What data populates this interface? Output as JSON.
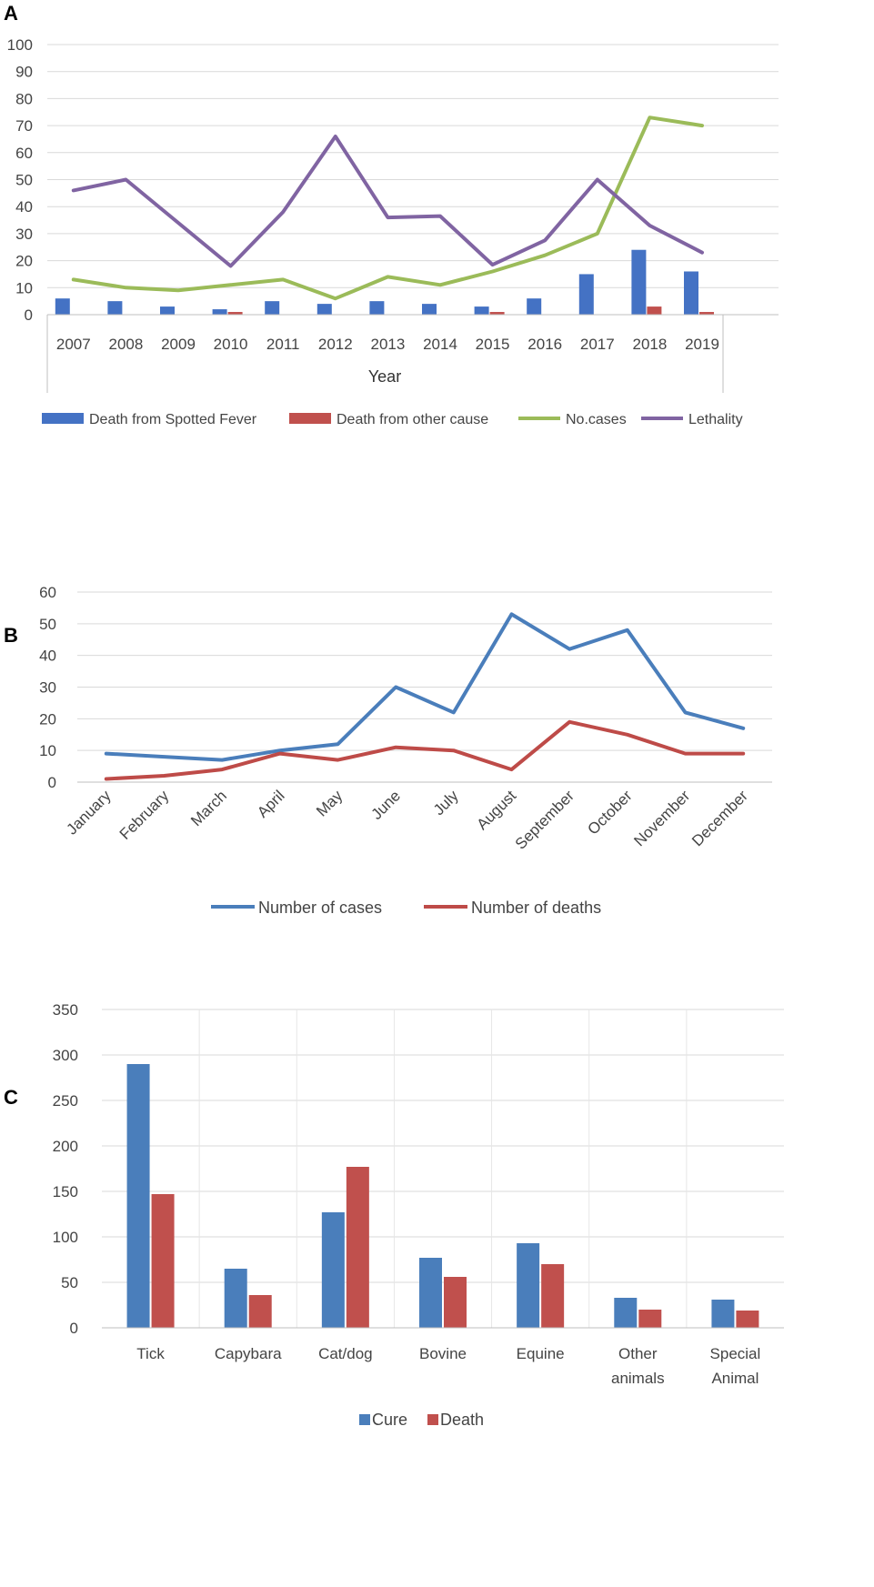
{
  "panels": [
    "A",
    "B",
    "C"
  ],
  "chart_data": [
    {
      "type": "bar",
      "panel": "A",
      "categories": [
        "2007",
        "2008",
        "2009",
        "2010",
        "2011",
        "2012",
        "2013",
        "2014",
        "2015",
        "2016",
        "2017",
        "2018",
        "2019"
      ],
      "xlabel": "Year",
      "ylabel": "",
      "ylim": [
        0,
        100
      ],
      "yticks": [
        0,
        10,
        20,
        30,
        40,
        50,
        60,
        70,
        80,
        90,
        100
      ],
      "series": [
        {
          "name": "Death from Spotted Fever",
          "kind": "bar",
          "color": "#4472c4",
          "values": [
            6,
            5,
            3,
            2,
            5,
            4,
            5,
            4,
            3,
            6,
            15,
            24,
            16
          ]
        },
        {
          "name": "Death from other cause",
          "kind": "bar",
          "color": "#c0504d",
          "values": [
            0,
            0,
            0,
            1,
            0,
            0,
            0,
            0,
            1,
            0,
            0,
            3,
            1
          ]
        },
        {
          "name": "No.cases",
          "kind": "line",
          "color": "#9bbb59",
          "values": [
            13,
            10,
            9,
            11,
            13,
            6,
            14,
            11,
            16,
            22,
            30,
            73,
            70
          ]
        },
        {
          "name": "Lethality",
          "kind": "line",
          "color": "#8064a2",
          "values": [
            46,
            50,
            34,
            18,
            38,
            66,
            36,
            36.5,
            18.5,
            27.5,
            50,
            33,
            23
          ]
        }
      ]
    },
    {
      "type": "line",
      "panel": "B",
      "categories": [
        "January",
        "February",
        "March",
        "April",
        "May",
        "June",
        "July",
        "August",
        "September",
        "October",
        "November",
        "December"
      ],
      "xlabel": "",
      "ylabel": "",
      "ylim": [
        0,
        60
      ],
      "yticks": [
        0,
        10,
        20,
        30,
        40,
        50,
        60
      ],
      "series": [
        {
          "name": "Number of cases",
          "color": "#4a7ebb",
          "values": [
            9,
            8,
            7,
            10,
            12,
            30,
            22,
            53,
            42,
            48,
            22,
            17
          ]
        },
        {
          "name": "Number of deaths",
          "color": "#be4b48",
          "values": [
            1,
            2,
            4,
            9,
            7,
            11,
            10,
            4,
            19,
            15,
            9,
            9
          ]
        }
      ]
    },
    {
      "type": "bar",
      "panel": "C",
      "categories": [
        [
          "Tick"
        ],
        [
          "Capybara"
        ],
        [
          "Cat/dog"
        ],
        [
          "Bovine"
        ],
        [
          "Equine"
        ],
        [
          "Other",
          "animals"
        ],
        [
          "Special",
          "Animal"
        ]
      ],
      "xlabel": "",
      "ylabel": "",
      "ylim": [
        0,
        350
      ],
      "yticks": [
        0,
        50,
        100,
        150,
        200,
        250,
        300,
        350
      ],
      "series": [
        {
          "name": "Cure",
          "color": "#4a7ebb",
          "values": [
            290,
            65,
            127,
            77,
            93,
            33,
            31
          ]
        },
        {
          "name": "Death",
          "color": "#c0504d",
          "values": [
            147,
            36,
            177,
            56,
            70,
            20,
            19
          ]
        }
      ]
    }
  ]
}
